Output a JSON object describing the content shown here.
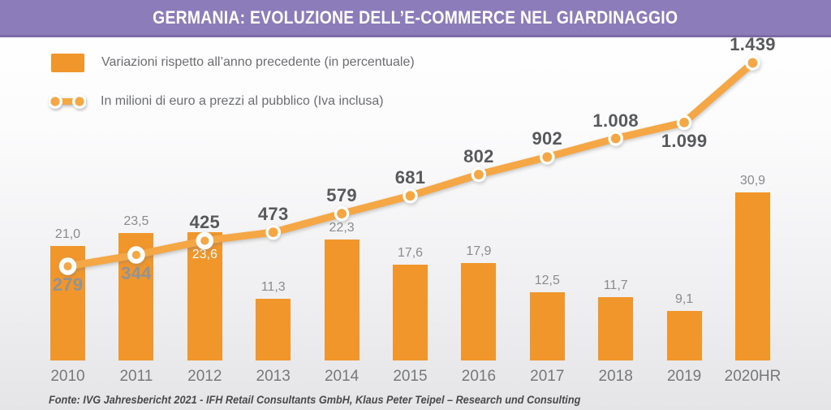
{
  "header": {
    "title": "GERMANIA: EVOLUZIONE DELL’E-COMMERCE NEL GIARDINAGGIO"
  },
  "legend": {
    "bars_label": "Variazioni rispetto all’anno precedente (in percentuale)",
    "line_label": "In milioni di euro a prezzi al pubblico (Iva inclusa)"
  },
  "footer": {
    "source": "Fonte: IVG Jahresbericht 2021 - IFH Retail Consultants GmbH, Klaus Peter Teipel – Research und Consulting"
  },
  "colors": {
    "header_purple": "#8c7cb9",
    "header_purple_dark": "#7a6ba7",
    "bar_orange": "#f0962b",
    "line_orange": "#f5a746",
    "label_dark": "#58595b",
    "label_muted": "#919396",
    "bar_label_gray": "#8a8b8e",
    "bar_label_white": "#ffffff",
    "year_gray": "#77787b"
  },
  "chart_data": {
    "type": "bar+line",
    "title": "GERMANIA: EVOLUZIONE DELL’E-COMMERCE NEL GIARDINAGGIO",
    "categories": [
      "2010",
      "2011",
      "2012",
      "2013",
      "2014",
      "2015",
      "2016",
      "2017",
      "2018",
      "2019",
      "2020HR"
    ],
    "grid": "off",
    "legend_position": "top-left",
    "series": [
      {
        "name": "Variazioni rispetto all’anno precedente (in percentuale)",
        "type": "bar",
        "ylim": [
          0,
          32
        ],
        "values": [
          21.0,
          23.5,
          23.6,
          11.3,
          22.3,
          17.6,
          17.9,
          12.5,
          11.7,
          9.1,
          30.9
        ],
        "value_labels": [
          "21,0",
          "23,5",
          "23,6",
          "11,3",
          "22,3",
          "17,6",
          "17,9",
          "12,5",
          "11,7",
          "9,1",
          "30,9"
        ],
        "label_placement": [
          "above",
          "above",
          "inside",
          "above",
          "above",
          "above",
          "above",
          "above",
          "above",
          "above",
          "above"
        ]
      },
      {
        "name": "In milioni di euro a prezzi al pubblico (Iva inclusa)",
        "type": "line",
        "ylim": [
          250,
          1500
        ],
        "values": [
          279,
          344,
          425,
          473,
          579,
          681,
          802,
          902,
          1008,
          1099,
          1439
        ],
        "value_labels": [
          "279",
          "344",
          "425",
          "473",
          "579",
          "681",
          "802",
          "902",
          "1.008",
          "1.099",
          "1.439"
        ],
        "label_placement": [
          "below",
          "below",
          "above",
          "above",
          "above",
          "above",
          "above",
          "above",
          "above",
          "below",
          "above"
        ],
        "label_tone": [
          "muted",
          "muted",
          "dark",
          "dark",
          "dark",
          "dark",
          "dark",
          "dark",
          "dark",
          "dark",
          "dark"
        ],
        "marker_size": [
          "large",
          "large",
          "large",
          "small",
          "small",
          "small",
          "small",
          "small",
          "small",
          "small",
          "small"
        ]
      }
    ]
  }
}
